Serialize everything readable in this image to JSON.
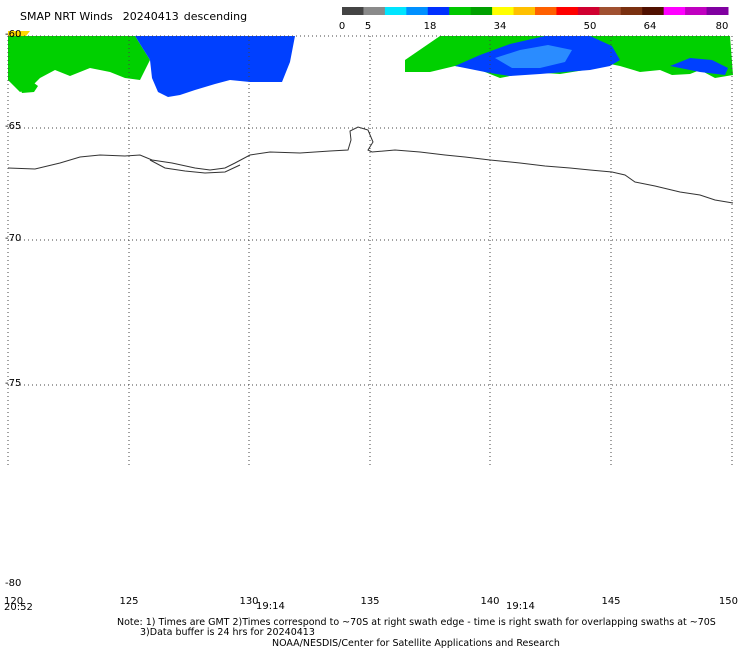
{
  "title": "SMAP NRT Winds",
  "date": "20240413",
  "pass": "descending",
  "colorbar": {
    "ticks": [
      "0",
      "5",
      "18",
      "34",
      "50",
      "64",
      "80"
    ],
    "segments": [
      "#444444",
      "#8a8a8a",
      "#00e5ff",
      "#0090ff",
      "#0030ff",
      "#00c800",
      "#00a000",
      "#ffff00",
      "#ffc000",
      "#ff6000",
      "#ff0000",
      "#d00030",
      "#a05030",
      "#7a3010",
      "#501000",
      "#ff00ff",
      "#c000c0",
      "#8000a0"
    ]
  },
  "map": {
    "lon_ticks": [
      "120",
      "125",
      "130",
      "135",
      "140",
      "145",
      "150"
    ],
    "lat_ticks": [
      "-60",
      "-65",
      "-70",
      "-75",
      "-80"
    ],
    "lon_range": [
      120,
      150
    ],
    "lat_range": [
      -60,
      -80
    ]
  },
  "swath_times": [
    "20:52",
    "19:14",
    "19:14"
  ],
  "wind_colors": {
    "green": "#00d000",
    "blue": "#0040ff",
    "light_blue": "#2a8cff",
    "yellow": "#ffd800"
  },
  "notes": {
    "line1": "Note: 1) Times are GMT 2)Times correspond to ~70S at right swath edge - time is right swath for overlapping swaths at ~70S",
    "line2": "3)Data buffer is 24 hrs for 20240413",
    "line3": "NOAA/NESDIS/Center for Satellite Applications and Research"
  }
}
